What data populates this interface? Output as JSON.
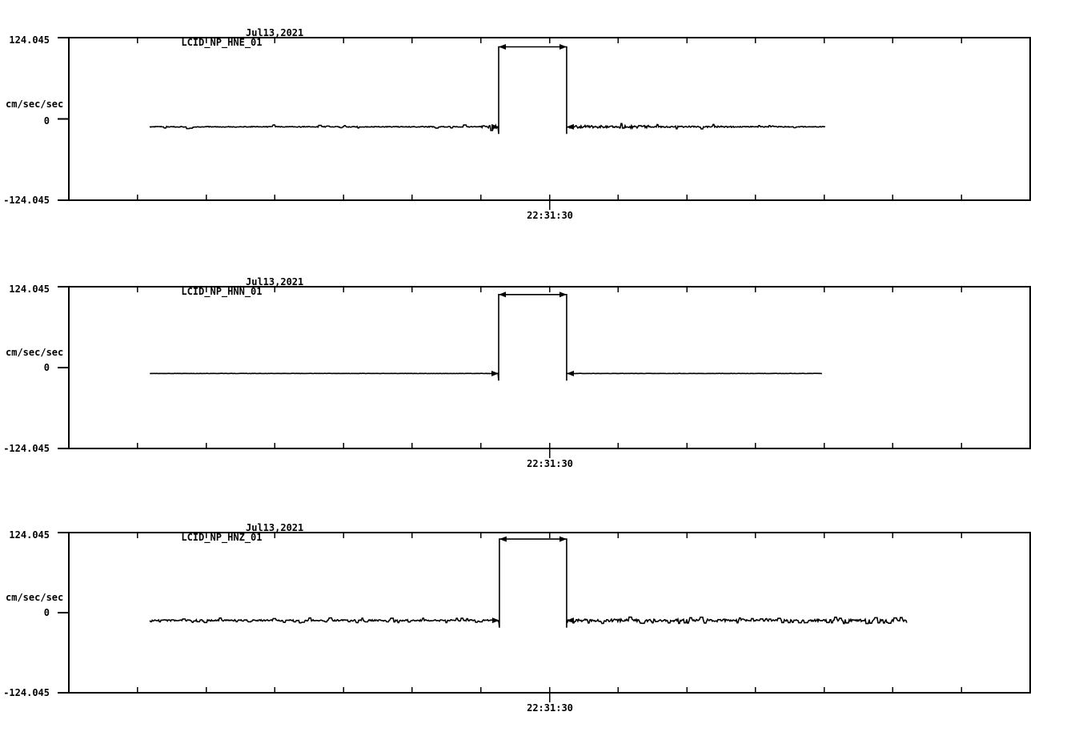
{
  "page": {
    "background_color": "#ffffff",
    "line_color": "#000000"
  },
  "chart_data": [
    {
      "type": "line",
      "title": "LCID_NP_HNE_01",
      "date_label": "Jul13,2021",
      "ylabel": "cm/sec/sec",
      "ylim": [
        -124.045,
        124.045
      ],
      "y_tick_labels": [
        "124.045",
        "0",
        "-124.045"
      ],
      "y_tick_values": [
        124.045,
        0,
        -124.045
      ],
      "x_tick_label": "22:31:30",
      "x_tick_count": 13,
      "x_labeled_tick_index": 6,
      "grid": false,
      "legend": false,
      "series": {
        "name": "LCID_NP_HNE_01",
        "units": "cm/sec/sec",
        "baseline_value": -12,
        "pulse_top_value": 110,
        "trace_start_tick": 1.18,
        "pulse_start_tick": 6.26,
        "pulse_end_tick": 7.25,
        "trace_end_tick": 11.02,
        "noise_amp": 0.5,
        "spike_prob": 0.045,
        "noise_regions": [
          {
            "from": 6.0,
            "to": 6.26,
            "amp": 1.8
          },
          {
            "from": 7.25,
            "to": 8.45,
            "amp": 1.7
          },
          {
            "from": 8.45,
            "to": 9.7,
            "amp": 0.9
          }
        ],
        "seed": 7
      }
    },
    {
      "type": "line",
      "title": "LCID_NP_HNN_01",
      "date_label": "Jul13,2021",
      "ylabel": "cm/sec/sec",
      "ylim": [
        -124.045,
        124.045
      ],
      "y_tick_labels": [
        "124.045",
        "0",
        "-124.045"
      ],
      "y_tick_values": [
        124.045,
        0,
        -124.045
      ],
      "x_tick_label": "22:31:30",
      "x_tick_count": 13,
      "x_labeled_tick_index": 6,
      "grid": false,
      "legend": false,
      "series": {
        "name": "LCID_NP_HNN_01",
        "units": "cm/sec/sec",
        "baseline_value": -9,
        "pulse_top_value": 112,
        "trace_start_tick": 1.18,
        "pulse_start_tick": 6.26,
        "pulse_end_tick": 7.25,
        "trace_end_tick": 10.98,
        "noise_amp": 0.15,
        "spike_prob": 0.0,
        "noise_regions": [],
        "seed": 11
      }
    },
    {
      "type": "line",
      "title": "LCID_NP_HNZ_01",
      "date_label": "Jul13,2021",
      "ylabel": "cm/sec/sec",
      "ylim": [
        -124.045,
        124.045
      ],
      "y_tick_labels": [
        "124.045",
        "0",
        "-124.045"
      ],
      "y_tick_values": [
        124.045,
        0,
        -124.045
      ],
      "x_tick_label": "22:31:30",
      "x_tick_count": 13,
      "x_labeled_tick_index": 6,
      "grid": false,
      "legend": false,
      "series": {
        "name": "LCID_NP_HNZ_01",
        "units": "cm/sec/sec",
        "baseline_value": -12,
        "pulse_top_value": 114,
        "trace_start_tick": 1.18,
        "pulse_start_tick": 6.27,
        "pulse_end_tick": 7.25,
        "trace_end_tick": 12.21,
        "noise_amp": 0.9,
        "spike_prob": 0.09,
        "noise_regions": [
          {
            "from": 7.25,
            "to": 9.6,
            "amp": 1.6
          },
          {
            "from": 10.8,
            "to": 12.21,
            "amp": 1.4
          }
        ],
        "seed": 13
      }
    }
  ]
}
